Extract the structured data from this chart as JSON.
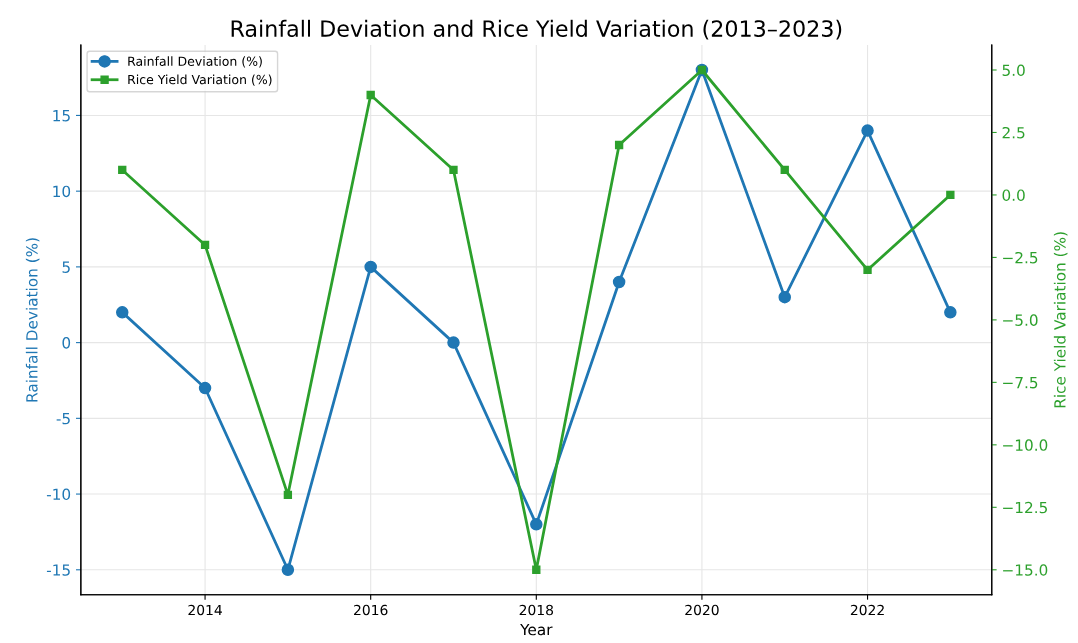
{
  "chart_data": {
    "type": "line",
    "title": "Rainfall Deviation and Rice Yield Variation (2013–2023)",
    "xlabel": "Year",
    "ylabel": "Rainfall Deviation (%)",
    "y2label": "Rice Yield Variation (%)",
    "x": [
      2013,
      2014,
      2015,
      2016,
      2017,
      2018,
      2019,
      2020,
      2021,
      2022,
      2023
    ],
    "series": [
      {
        "name": "Rainfall Deviation (%)",
        "color": "#1f77b4",
        "marker": "circle",
        "values": [
          2,
          -3,
          -15,
          5,
          0,
          -12,
          4,
          18,
          3,
          14,
          2
        ]
      },
      {
        "name": "Rice Yield Variation (%)",
        "color": "#2ca02c",
        "marker": "square",
        "axis": "y2",
        "values": [
          1,
          -2,
          -12,
          4,
          1,
          -15,
          2,
          5,
          1,
          -3,
          0
        ]
      }
    ],
    "xlim": [
      2012.5,
      2023.5
    ],
    "xticks": [
      2014,
      2016,
      2018,
      2020,
      2022
    ],
    "ylim": [
      -16.65,
      19.65
    ],
    "yticks": [
      -15,
      -10,
      -5,
      0,
      5,
      10,
      15
    ],
    "y2lim": [
      -16,
      6
    ],
    "y2ticks": [
      {
        "value": -15,
        "label": "−15.0"
      },
      {
        "value": -12.5,
        "label": "−12.5"
      },
      {
        "value": -10,
        "label": "−10.0"
      },
      {
        "value": -7.5,
        "label": "−7.5"
      },
      {
        "value": -5,
        "label": "−5.0"
      },
      {
        "value": -2.5,
        "label": "−2.5"
      },
      {
        "value": 0,
        "label": "0.0"
      },
      {
        "value": 2.5,
        "label": "2.5"
      },
      {
        "value": 5,
        "label": "5.0"
      }
    ],
    "grid": true,
    "legend": "top left",
    "line_style": "solid"
  }
}
